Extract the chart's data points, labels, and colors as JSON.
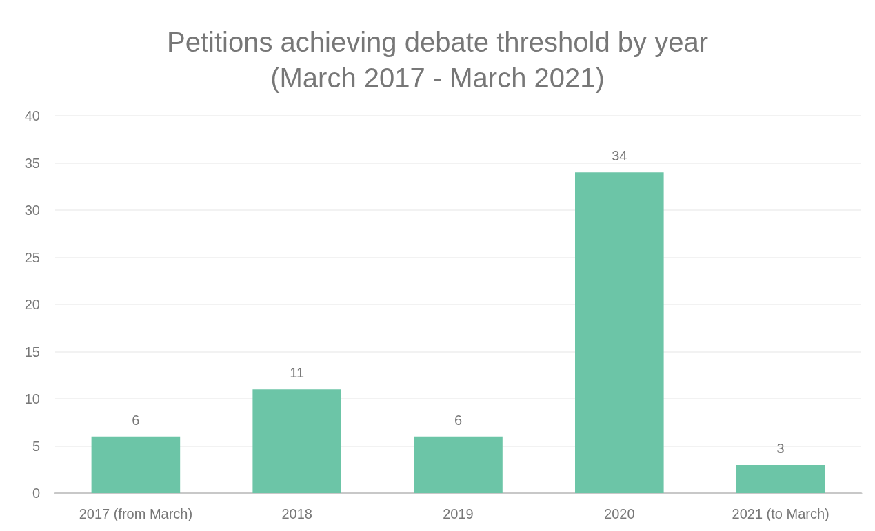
{
  "chart_data": {
    "type": "bar",
    "title": "Petitions achieving debate threshold by year\n(March 2017 - March 2021)",
    "categories": [
      "2017 (from March)",
      "2018",
      "2019",
      "2020",
      "2021 (to March)"
    ],
    "values": [
      6,
      11,
      6,
      34,
      3
    ],
    "color": "#6cc5a7",
    "ylim": [
      0,
      40
    ],
    "yticks": [
      0,
      5,
      10,
      15,
      20,
      25,
      30,
      35,
      40
    ],
    "grid": "y",
    "data_labels": true
  }
}
